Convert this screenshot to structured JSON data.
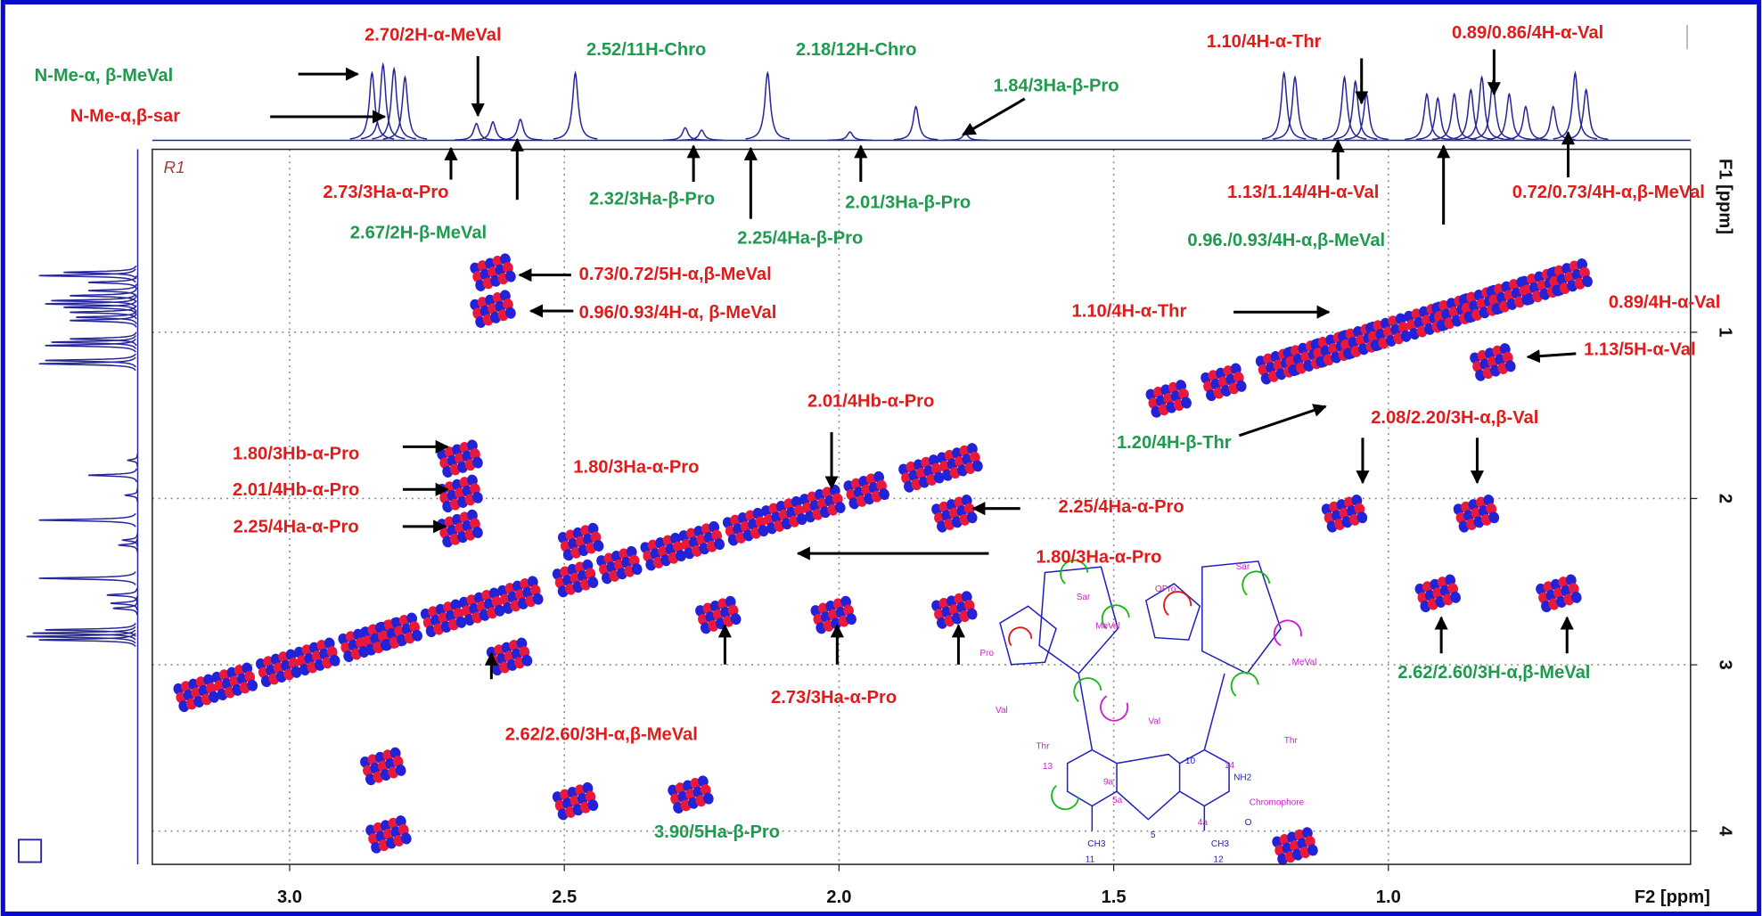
{
  "chart_data": {
    "type": "nmr-2d",
    "x_label": "F2 [ppm]",
    "y_label": "F1 [ppm]",
    "region_label": "R1",
    "xlim": [
      3.25,
      0.45
    ],
    "ylim": [
      -0.1,
      4.2
    ],
    "xticks": [
      {
        "value": 3,
        "label": "3.0"
      },
      2.5,
      {
        "value": 2,
        "label": "2.0"
      },
      1.5,
      {
        "value": 1,
        "label": "1.0"
      }
    ],
    "yticks": [
      1,
      2,
      3,
      4
    ],
    "grid": true,
    "peak_colors": [
      "#e8193c",
      "#2222d6"
    ],
    "projection_color": "#26269a",
    "peaks": {
      "x": [
        3.17,
        3.1,
        3.02,
        2.95,
        2.87,
        2.83,
        2.8,
        2.72,
        2.65,
        2.58,
        2.48,
        2.4,
        2.32,
        2.25,
        2.17,
        2.1,
        2.03,
        1.95,
        1.85,
        1.78,
        1.4,
        1.3,
        1.2,
        1.15,
        1.1,
        1.05,
        1.0,
        0.93,
        0.88,
        0.83,
        0.78,
        0.72,
        0.67,
        2.63,
        2.63,
        2.69,
        2.69,
        2.69,
        2.22,
        2.01,
        1.79,
        1.08,
        0.84,
        0.91,
        0.69,
        2.27,
        2.48,
        1.79,
        0.81,
        2.83,
        2.82,
        1.17,
        2.47,
        2.6
      ],
      "y": [
        3.17,
        3.1,
        3.02,
        2.95,
        2.87,
        2.83,
        2.8,
        2.72,
        2.65,
        2.58,
        2.48,
        2.4,
        2.32,
        2.25,
        2.17,
        2.1,
        2.03,
        1.95,
        1.85,
        1.78,
        1.4,
        1.3,
        1.2,
        1.15,
        1.1,
        1.05,
        1.0,
        0.93,
        0.88,
        0.83,
        0.78,
        0.72,
        0.67,
        0.64,
        0.86,
        1.76,
        1.97,
        2.18,
        2.7,
        2.7,
        2.67,
        2.09,
        2.09,
        2.57,
        2.57,
        3.78,
        3.82,
        2.09,
        1.18,
        3.61,
        4.02,
        4.09,
        2.26,
        2.95
      ]
    },
    "f2_projection": {
      "x": [
        2.85,
        2.83,
        2.81,
        2.79,
        2.66,
        2.63,
        2.58,
        2.48,
        2.28,
        2.25,
        2.13,
        1.98,
        1.86,
        1.77,
        1.19,
        1.17,
        1.08,
        1.06,
        1.04,
        0.93,
        0.91,
        0.88,
        0.85,
        0.83,
        0.81,
        0.78,
        0.75,
        0.7,
        0.66,
        0.64
      ],
      "intensity": [
        80,
        90,
        85,
        75,
        20,
        22,
        25,
        80,
        15,
        12,
        80,
        10,
        40,
        8,
        80,
        75,
        75,
        70,
        55,
        55,
        50,
        55,
        60,
        75,
        70,
        55,
        40,
        40,
        80,
        60
      ]
    },
    "annotations": [
      {
        "text": "2.70/2H-α-MeVal",
        "color": "#e01b1b"
      },
      {
        "text": "N-Me-α, β-MeVal",
        "color": "#1f9a4f"
      },
      {
        "text": "N-Me-α,β-sar",
        "color": "#e01b1b"
      },
      {
        "text": "2.52/11H-Chro",
        "color": "#1f9a4f"
      },
      {
        "text": "2.18/12H-Chro",
        "color": "#1f9a4f"
      },
      {
        "text": "1.84/3Ha-β-Pro",
        "color": "#1f9a4f"
      },
      {
        "text": "1.10/4H-α-Thr",
        "color": "#e01b1b"
      },
      {
        "text": "0.89/0.86/4H-α-Val",
        "color": "#e01b1b"
      },
      {
        "text": "2.73/3Ha-α-Pro",
        "color": "#e01b1b"
      },
      {
        "text": "2.67/2H-β-MeVal",
        "color": "#1f9a4f"
      },
      {
        "text": "2.32/3Ha-β-Pro",
        "color": "#1f9a4f"
      },
      {
        "text": "2.25/4Ha-β-Pro",
        "color": "#1f9a4f"
      },
      {
        "text": "2.01/3Ha-β-Pro",
        "color": "#1f9a4f"
      },
      {
        "text": "1.13/1.14/4H-α-Val",
        "color": "#e01b1b"
      },
      {
        "text": "0.72/0.73/4H-α,β-MeVal",
        "color": "#e01b1b"
      },
      {
        "text": "0.96./0.93/4H-α,β-MeVal",
        "color": "#1f9a4f"
      },
      {
        "text": "0.73/0.72/5H-α,β-MeVal",
        "color": "#e01b1b"
      },
      {
        "text": "0.96/0.93/4H-α, β-MeVal",
        "color": "#e01b1b"
      },
      {
        "text": "1.10/4H-α-Thr",
        "color": "#e01b1b"
      },
      {
        "text": "0.89/4H-α-Val",
        "color": "#e01b1b"
      },
      {
        "text": "1.13/5H-α-Val",
        "color": "#e01b1b"
      },
      {
        "text": "2.01/4Hb-α-Pro",
        "color": "#e01b1b"
      },
      {
        "text": "1.80/3Hb-α-Pro",
        "color": "#e01b1b"
      },
      {
        "text": "1.80/3Ha-α-Pro",
        "color": "#e01b1b"
      },
      {
        "text": "2.01/4Hb-α-Pro",
        "color": "#e01b1b"
      },
      {
        "text": "2.25/4Ha-α-Pro",
        "color": "#e01b1b"
      },
      {
        "text": "1.20/4H-β-Thr",
        "color": "#1f9a4f"
      },
      {
        "text": "2.08/2.20/3H-α,β-Val",
        "color": "#e01b1b"
      },
      {
        "text": "2.25/4Ha-α-Pro",
        "color": "#e01b1b"
      },
      {
        "text": "1.80/3Ha-α-Pro",
        "color": "#e01b1b"
      },
      {
        "text": "2.73/3Ha-α-Pro",
        "color": "#e01b1b"
      },
      {
        "text": "2.62/2.60/3H-α,β-MeVal",
        "color": "#e01b1b"
      },
      {
        "text": "2.62/2.60/3H-α,β-MeVal",
        "color": "#1f9a4f"
      },
      {
        "text": "3.90/5Ha-β-Pro",
        "color": "#1f9a4f"
      }
    ],
    "structure_labels": [
      {
        "text": "Sar",
        "color": "#d020d0"
      },
      {
        "text": "MeVal",
        "color": "#d020d0"
      },
      {
        "text": "Pro",
        "color": "#d020d0"
      },
      {
        "text": "Val",
        "color": "#d020d0"
      },
      {
        "text": "Thr",
        "color": "#d020d0"
      },
      {
        "text": "OPro",
        "color": "#d020d0"
      },
      {
        "text": "Sar",
        "color": "#d020d0"
      },
      {
        "text": "MeVal",
        "color": "#d020d0"
      },
      {
        "text": "Val",
        "color": "#d020d0"
      },
      {
        "text": "Thr",
        "color": "#d020d0"
      },
      {
        "text": "Chromophore",
        "color": "#d020d0"
      },
      {
        "text": "NH2",
        "color": "#2020c0"
      },
      {
        "text": "10",
        "color": "#2020c0"
      },
      {
        "text": "13",
        "color": "#d020d0"
      },
      {
        "text": "14",
        "color": "#d020d0"
      },
      {
        "text": "9a",
        "color": "#d020d0"
      },
      {
        "text": "5a",
        "color": "#d020d0"
      },
      {
        "text": "4a",
        "color": "#d020d0"
      },
      {
        "text": "CH3",
        "color": "#2020c0"
      },
      {
        "text": "CH3",
        "color": "#2020c0"
      },
      {
        "text": "11",
        "color": "#2020c0"
      },
      {
        "text": "12",
        "color": "#2020c0"
      },
      {
        "text": "5",
        "color": "#2020c0"
      },
      {
        "text": "O",
        "color": "#2020c0"
      }
    ]
  }
}
